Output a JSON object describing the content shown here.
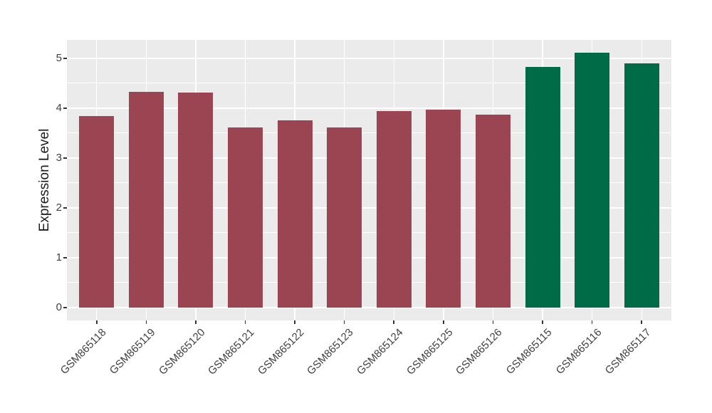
{
  "chart_data": {
    "type": "bar",
    "title": "",
    "xlabel": "",
    "ylabel": "Expression Level",
    "categories": [
      "GSM865118",
      "GSM865119",
      "GSM865120",
      "GSM865121",
      "GSM865122",
      "GSM865123",
      "GSM865124",
      "GSM865125",
      "GSM865126",
      "GSM865115",
      "GSM865116",
      "GSM865117"
    ],
    "values": [
      3.84,
      4.32,
      4.31,
      3.61,
      3.75,
      3.61,
      3.94,
      3.97,
      3.87,
      4.82,
      5.11,
      4.9
    ],
    "bar_colors": [
      "#9B4452",
      "#9B4452",
      "#9B4452",
      "#9B4452",
      "#9B4452",
      "#9B4452",
      "#9B4452",
      "#9B4452",
      "#9B4452",
      "#006B47",
      "#006B47",
      "#006B47"
    ],
    "y_ticks": [
      0,
      1,
      2,
      3,
      4,
      5
    ],
    "ylim": [
      -0.26,
      5.37
    ],
    "grid": "major+minor",
    "legend_position": "none",
    "colors": {
      "panel_bg": "#EBEBEB",
      "grid": "#FFFFFF",
      "tick_mark": "#333333",
      "axis_text": "#404040",
      "axis_title": "#1A1A1A",
      "bar_red": "#9B4452",
      "bar_green": "#006B47"
    }
  }
}
